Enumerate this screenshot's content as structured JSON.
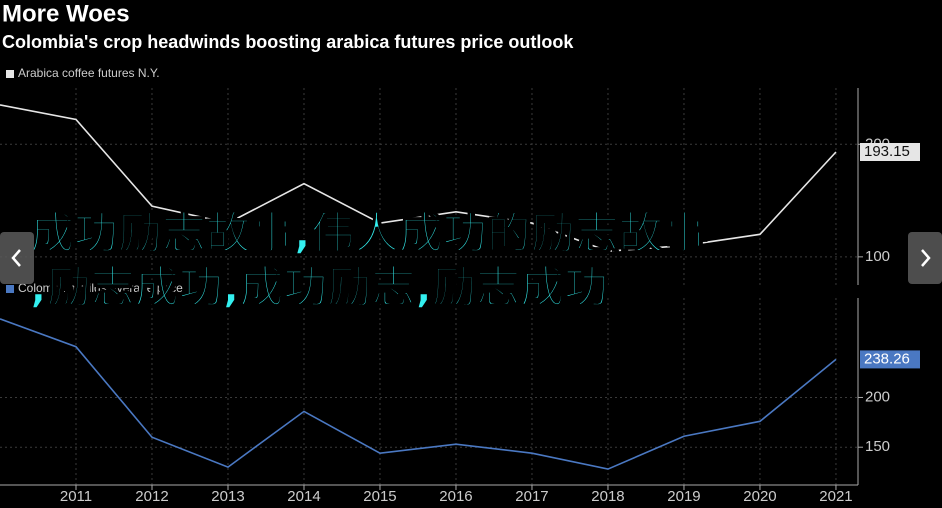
{
  "header": {
    "title": "More Woes",
    "subtitle": "Colombia's crop headwinds boosting arabica futures price outlook"
  },
  "overlay": {
    "lines": [
      "成功励志故事,伟人成功的励志故事",
      ",励志成功,成功励志,励志成功"
    ]
  },
  "chart_data": [
    {
      "type": "line",
      "x": [
        2010,
        2011,
        2012,
        2013,
        2014,
        2015,
        2016,
        2017,
        2018,
        2019,
        2020,
        2021
      ],
      "series": [
        {
          "name": "Arabica coffee futures N.Y.",
          "color": "#e6e6e6",
          "values": [
            235,
            222,
            145,
            130,
            165,
            130,
            140,
            130,
            105,
            110,
            120,
            193.15
          ]
        }
      ],
      "xlim": [
        2010,
        2021.29
      ],
      "xticks": [
        2011,
        2012,
        2013,
        2014,
        2015,
        2016,
        2017,
        2018,
        2019,
        2020,
        2021
      ],
      "ylim": [
        75,
        250
      ],
      "yticks": [
        100,
        200
      ],
      "grid": true
    },
    {
      "type": "line",
      "x": [
        2010,
        2011,
        2012,
        2013,
        2014,
        2015,
        2016,
        2017,
        2018,
        2019,
        2020,
        2021
      ],
      "series": [
        {
          "name": "Colombian milds average price",
          "color": "#4a78c2",
          "values": [
            279,
            251,
            160,
            130,
            186,
            144,
            153,
            144,
            128,
            161,
            176,
            238.26
          ]
        }
      ],
      "xlim": [
        2010,
        2021.29
      ],
      "xticks": [
        2011,
        2012,
        2013,
        2014,
        2015,
        2016,
        2017,
        2018,
        2019,
        2020,
        2021
      ],
      "ylim": [
        112,
        300
      ],
      "yticks": [
        150,
        200
      ],
      "grid": true
    }
  ]
}
